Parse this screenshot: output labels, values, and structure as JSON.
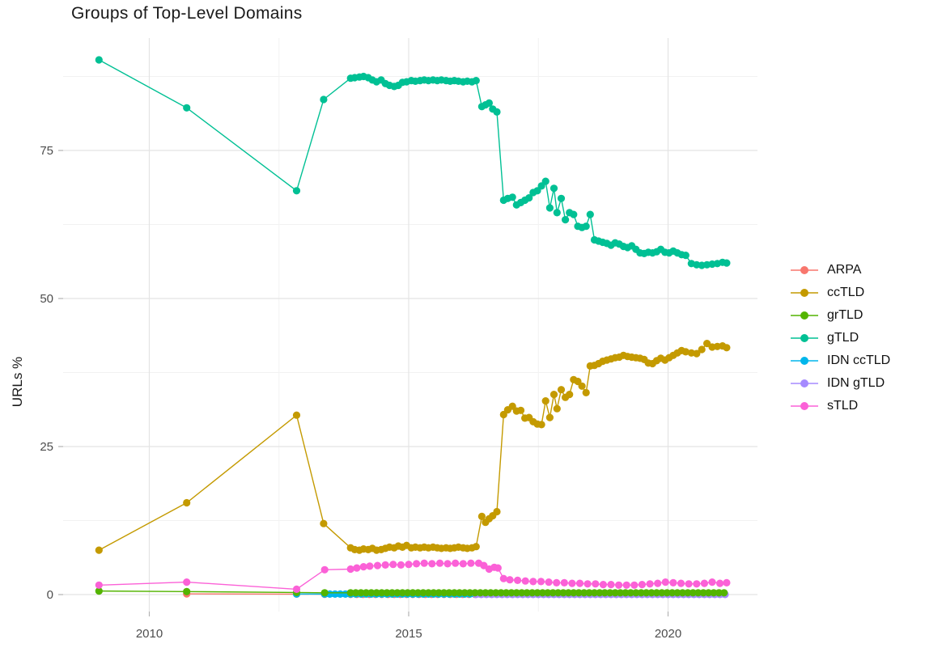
{
  "title": "Groups of Top-Level Domains",
  "y_axis_title": "URLs %",
  "legend": {
    "items": [
      {
        "label": "ARPA",
        "color": "#F8766D"
      },
      {
        "label": "ccTLD",
        "color": "#C49A00"
      },
      {
        "label": "grTLD",
        "color": "#53B400"
      },
      {
        "label": "gTLD",
        "color": "#00C094"
      },
      {
        "label": "IDN ccTLD",
        "color": "#00B6EB"
      },
      {
        "label": "IDN gTLD",
        "color": "#A58AFF"
      },
      {
        "label": "sTLD",
        "color": "#FB61D7"
      }
    ]
  },
  "chart_data": {
    "type": "line",
    "title": "Groups of Top-Level Domains",
    "xlabel": "",
    "ylabel": "URLs %",
    "xlim": [
      2008.35,
      2021.7
    ],
    "ylim": [
      -1,
      94
    ],
    "x_ticks_major": [
      2010,
      2015,
      2020
    ],
    "x_ticks_minor": [
      2012.5,
      2017.5
    ],
    "y_ticks_major": [
      0,
      25,
      50,
      75
    ],
    "y_ticks_minor": [
      12.5,
      37.5,
      62.5,
      87.5
    ],
    "grid": true,
    "legend_position": "right",
    "axis_text_color": "#4d4d4d",
    "series": [
      {
        "name": "ARPA",
        "color": "#F8766D",
        "z": 0,
        "points": [
          [
            2010.72,
            0.12
          ],
          [
            2012.84,
            0.08
          ],
          [
            2013.38,
            0.05
          ]
        ],
        "flat": {
          "from": 2013.88,
          "to": 2016.3,
          "step": 0.12,
          "value": 0.03
        }
      },
      {
        "name": "IDN ccTLD",
        "color": "#00B6EB",
        "z": 1,
        "points": [
          [
            2012.84,
            0.1
          ]
        ],
        "flat": {
          "from": 2013.38,
          "to": 2021.13,
          "step": 0.1,
          "value": 0.08
        }
      },
      {
        "name": "IDN gTLD",
        "color": "#A58AFF",
        "z": 2,
        "points": [],
        "flat": {
          "from": 2016.3,
          "to": 2021.13,
          "step": 0.1,
          "value": 0.02
        }
      },
      {
        "name": "ccTLD",
        "color": "#C49A00",
        "z": 3,
        "points": [
          [
            2009.03,
            7.5
          ],
          [
            2010.72,
            15.5
          ],
          [
            2012.84,
            30.3
          ],
          [
            2013.36,
            12.0
          ],
          [
            2013.88,
            7.9
          ],
          [
            2013.96,
            7.6
          ],
          [
            2014.05,
            7.5
          ],
          [
            2014.13,
            7.7
          ],
          [
            2014.22,
            7.6
          ],
          [
            2014.3,
            7.8
          ],
          [
            2014.38,
            7.5
          ],
          [
            2014.47,
            7.6
          ],
          [
            2014.55,
            7.8
          ],
          [
            2014.63,
            8.0
          ],
          [
            2014.72,
            7.9
          ],
          [
            2014.8,
            8.2
          ],
          [
            2014.88,
            8.0
          ],
          [
            2014.96,
            8.3
          ],
          [
            2015.05,
            7.9
          ],
          [
            2015.13,
            8.0
          ],
          [
            2015.22,
            7.9
          ],
          [
            2015.3,
            8.0
          ],
          [
            2015.38,
            7.9
          ],
          [
            2015.47,
            8.0
          ],
          [
            2015.55,
            7.9
          ],
          [
            2015.63,
            7.8
          ],
          [
            2015.72,
            7.9
          ],
          [
            2015.8,
            7.8
          ],
          [
            2015.88,
            7.9
          ],
          [
            2015.96,
            8.0
          ],
          [
            2016.05,
            7.9
          ],
          [
            2016.13,
            7.8
          ],
          [
            2016.22,
            7.9
          ],
          [
            2016.3,
            8.1
          ],
          [
            2016.41,
            13.2
          ],
          [
            2016.48,
            12.2
          ],
          [
            2016.55,
            12.8
          ],
          [
            2016.62,
            13.3
          ],
          [
            2016.7,
            14.0
          ],
          [
            2016.83,
            30.4
          ],
          [
            2016.91,
            31.2
          ],
          [
            2017.0,
            31.8
          ],
          [
            2017.08,
            31.0
          ],
          [
            2017.16,
            31.1
          ],
          [
            2017.24,
            29.8
          ],
          [
            2017.32,
            29.9
          ],
          [
            2017.4,
            29.2
          ],
          [
            2017.48,
            28.8
          ],
          [
            2017.56,
            28.7
          ],
          [
            2017.64,
            32.7
          ],
          [
            2017.72,
            29.9
          ],
          [
            2017.8,
            33.8
          ],
          [
            2017.86,
            31.4
          ],
          [
            2017.94,
            34.6
          ],
          [
            2018.02,
            33.3
          ],
          [
            2018.1,
            33.8
          ],
          [
            2018.18,
            36.3
          ],
          [
            2018.26,
            36.0
          ],
          [
            2018.34,
            35.2
          ],
          [
            2018.42,
            34.1
          ],
          [
            2018.5,
            38.6
          ],
          [
            2018.58,
            38.7
          ],
          [
            2018.66,
            39.0
          ],
          [
            2018.74,
            39.4
          ],
          [
            2018.82,
            39.6
          ],
          [
            2018.9,
            39.8
          ],
          [
            2018.98,
            40.0
          ],
          [
            2019.06,
            40.1
          ],
          [
            2019.14,
            40.4
          ],
          [
            2019.22,
            40.2
          ],
          [
            2019.3,
            40.1
          ],
          [
            2019.38,
            40.0
          ],
          [
            2019.46,
            39.9
          ],
          [
            2019.54,
            39.7
          ],
          [
            2019.62,
            39.1
          ],
          [
            2019.7,
            39.0
          ],
          [
            2019.78,
            39.5
          ],
          [
            2019.86,
            39.9
          ],
          [
            2019.94,
            39.6
          ],
          [
            2020.02,
            40.0
          ],
          [
            2020.1,
            40.4
          ],
          [
            2020.18,
            40.8
          ],
          [
            2020.26,
            41.2
          ],
          [
            2020.34,
            41.0
          ],
          [
            2020.45,
            40.8
          ],
          [
            2020.55,
            40.7
          ],
          [
            2020.65,
            41.4
          ],
          [
            2020.75,
            42.4
          ],
          [
            2020.85,
            41.8
          ],
          [
            2020.95,
            41.9
          ],
          [
            2021.05,
            42.0
          ],
          [
            2021.13,
            41.7
          ]
        ]
      },
      {
        "name": "grTLD",
        "color": "#53B400",
        "z": 4,
        "points": [
          [
            2009.03,
            0.6
          ],
          [
            2010.72,
            0.5
          ],
          [
            2012.84,
            0.35
          ],
          [
            2013.38,
            0.3
          ]
        ],
        "flat": {
          "from": 2013.88,
          "to": 2021.13,
          "step": 0.1,
          "value": 0.3
        }
      },
      {
        "name": "gTLD",
        "color": "#00C094",
        "z": 5,
        "points": [
          [
            2009.03,
            90.3
          ],
          [
            2010.72,
            82.2
          ],
          [
            2012.84,
            68.2
          ],
          [
            2013.36,
            83.6
          ],
          [
            2013.88,
            87.2
          ],
          [
            2013.96,
            87.3
          ],
          [
            2014.05,
            87.4
          ],
          [
            2014.13,
            87.5
          ],
          [
            2014.22,
            87.3
          ],
          [
            2014.3,
            86.9
          ],
          [
            2014.38,
            86.6
          ],
          [
            2014.47,
            86.9
          ],
          [
            2014.55,
            86.3
          ],
          [
            2014.63,
            86.0
          ],
          [
            2014.72,
            85.8
          ],
          [
            2014.8,
            86.0
          ],
          [
            2014.88,
            86.5
          ],
          [
            2014.96,
            86.6
          ],
          [
            2015.05,
            86.8
          ],
          [
            2015.13,
            86.7
          ],
          [
            2015.22,
            86.8
          ],
          [
            2015.3,
            86.9
          ],
          [
            2015.38,
            86.8
          ],
          [
            2015.47,
            86.9
          ],
          [
            2015.55,
            86.8
          ],
          [
            2015.63,
            86.9
          ],
          [
            2015.72,
            86.8
          ],
          [
            2015.8,
            86.7
          ],
          [
            2015.88,
            86.8
          ],
          [
            2015.96,
            86.7
          ],
          [
            2016.05,
            86.6
          ],
          [
            2016.13,
            86.7
          ],
          [
            2016.22,
            86.6
          ],
          [
            2016.3,
            86.8
          ],
          [
            2016.41,
            82.4
          ],
          [
            2016.48,
            82.7
          ],
          [
            2016.55,
            83.0
          ],
          [
            2016.62,
            82.0
          ],
          [
            2016.7,
            81.5
          ],
          [
            2016.83,
            66.6
          ],
          [
            2016.91,
            66.9
          ],
          [
            2017.0,
            67.1
          ],
          [
            2017.08,
            65.8
          ],
          [
            2017.16,
            66.2
          ],
          [
            2017.24,
            66.6
          ],
          [
            2017.32,
            67.0
          ],
          [
            2017.4,
            67.9
          ],
          [
            2017.48,
            68.2
          ],
          [
            2017.56,
            69.0
          ],
          [
            2017.64,
            69.8
          ],
          [
            2017.72,
            65.3
          ],
          [
            2017.8,
            68.6
          ],
          [
            2017.86,
            64.5
          ],
          [
            2017.94,
            66.9
          ],
          [
            2018.02,
            63.3
          ],
          [
            2018.1,
            64.5
          ],
          [
            2018.18,
            64.2
          ],
          [
            2018.26,
            62.2
          ],
          [
            2018.34,
            62.0
          ],
          [
            2018.42,
            62.2
          ],
          [
            2018.5,
            64.2
          ],
          [
            2018.58,
            59.9
          ],
          [
            2018.66,
            59.7
          ],
          [
            2018.74,
            59.5
          ],
          [
            2018.82,
            59.3
          ],
          [
            2018.9,
            59.0
          ],
          [
            2018.98,
            59.4
          ],
          [
            2019.06,
            59.2
          ],
          [
            2019.14,
            58.8
          ],
          [
            2019.22,
            58.6
          ],
          [
            2019.3,
            58.9
          ],
          [
            2019.38,
            58.3
          ],
          [
            2019.46,
            57.7
          ],
          [
            2019.54,
            57.6
          ],
          [
            2019.62,
            57.8
          ],
          [
            2019.7,
            57.7
          ],
          [
            2019.78,
            57.9
          ],
          [
            2019.86,
            58.3
          ],
          [
            2019.94,
            57.8
          ],
          [
            2020.02,
            57.7
          ],
          [
            2020.1,
            58.0
          ],
          [
            2020.18,
            57.7
          ],
          [
            2020.26,
            57.4
          ],
          [
            2020.34,
            57.3
          ],
          [
            2020.45,
            55.9
          ],
          [
            2020.55,
            55.7
          ],
          [
            2020.65,
            55.6
          ],
          [
            2020.75,
            55.7
          ],
          [
            2020.85,
            55.8
          ],
          [
            2020.95,
            55.9
          ],
          [
            2021.05,
            56.1
          ],
          [
            2021.13,
            56.0
          ]
        ]
      },
      {
        "name": "sTLD",
        "color": "#FB61D7",
        "z": 6,
        "points": [
          [
            2009.03,
            1.6
          ],
          [
            2010.72,
            2.1
          ],
          [
            2012.84,
            0.9
          ],
          [
            2013.38,
            4.2
          ],
          [
            2013.88,
            4.3
          ],
          [
            2014.0,
            4.5
          ],
          [
            2014.13,
            4.7
          ],
          [
            2014.25,
            4.8
          ],
          [
            2014.4,
            4.9
          ],
          [
            2014.55,
            5.0
          ],
          [
            2014.7,
            5.1
          ],
          [
            2014.85,
            5.0
          ],
          [
            2015.0,
            5.1
          ],
          [
            2015.15,
            5.2
          ],
          [
            2015.3,
            5.3
          ],
          [
            2015.45,
            5.2
          ],
          [
            2015.6,
            5.3
          ],
          [
            2015.75,
            5.2
          ],
          [
            2015.9,
            5.3
          ],
          [
            2016.05,
            5.2
          ],
          [
            2016.2,
            5.3
          ],
          [
            2016.35,
            5.3
          ],
          [
            2016.45,
            4.9
          ],
          [
            2016.55,
            4.3
          ],
          [
            2016.65,
            4.6
          ],
          [
            2016.72,
            4.5
          ],
          [
            2016.83,
            2.7
          ],
          [
            2016.95,
            2.5
          ],
          [
            2017.1,
            2.4
          ],
          [
            2017.25,
            2.3
          ],
          [
            2017.4,
            2.2
          ],
          [
            2017.55,
            2.2
          ],
          [
            2017.7,
            2.1
          ],
          [
            2017.85,
            2.0
          ],
          [
            2018.0,
            2.0
          ],
          [
            2018.15,
            1.9
          ],
          [
            2018.3,
            1.9
          ],
          [
            2018.45,
            1.8
          ],
          [
            2018.6,
            1.8
          ],
          [
            2018.75,
            1.7
          ],
          [
            2018.9,
            1.7
          ],
          [
            2019.05,
            1.6
          ],
          [
            2019.2,
            1.6
          ],
          [
            2019.35,
            1.6
          ],
          [
            2019.5,
            1.7
          ],
          [
            2019.65,
            1.8
          ],
          [
            2019.8,
            1.9
          ],
          [
            2019.95,
            2.1
          ],
          [
            2020.1,
            2.0
          ],
          [
            2020.25,
            1.9
          ],
          [
            2020.4,
            1.8
          ],
          [
            2020.55,
            1.8
          ],
          [
            2020.7,
            1.9
          ],
          [
            2020.85,
            2.1
          ],
          [
            2021.0,
            1.9
          ],
          [
            2021.13,
            2.0
          ]
        ]
      }
    ]
  }
}
